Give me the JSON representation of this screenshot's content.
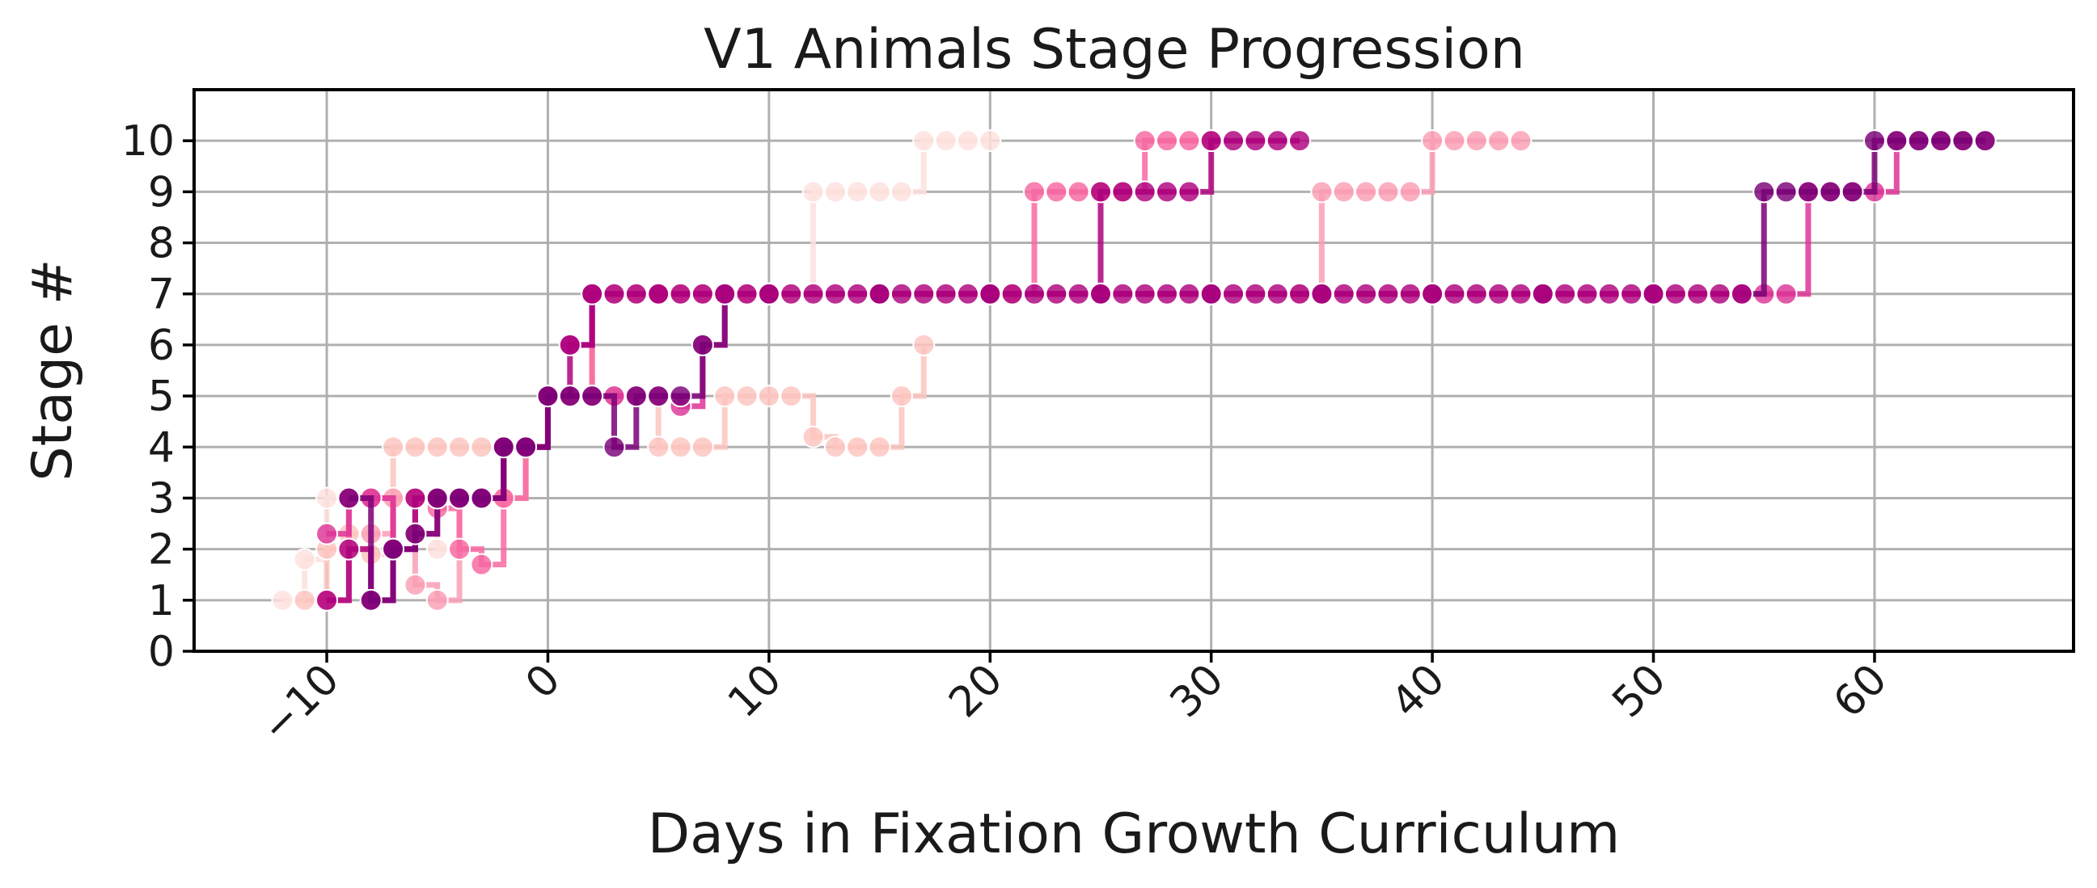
{
  "chart_data": {
    "type": "line",
    "title": "V1 Animals Stage Progression",
    "xlabel": "Days in Fixation Growth Curriculum",
    "ylabel": "Stage #",
    "xlim": [
      -16,
      69
    ],
    "ylim": [
      0,
      11
    ],
    "xticks": [
      -10,
      0,
      10,
      20,
      30,
      40,
      50,
      60
    ],
    "xtick_labels": [
      "−10",
      "0",
      "10",
      "20",
      "30",
      "40",
      "50",
      "60"
    ],
    "yticks": [
      0,
      1,
      2,
      3,
      4,
      5,
      6,
      7,
      8,
      9,
      10
    ],
    "ytick_labels": [
      "0",
      "1",
      "2",
      "3",
      "4",
      "5",
      "6",
      "7",
      "8",
      "9",
      "10"
    ],
    "grid": true,
    "line_style": "steps-post",
    "series": [
      {
        "color": "#fde0dd",
        "points": [
          [
            -12,
            1
          ],
          [
            -11,
            1.8
          ],
          [
            -10,
            3
          ],
          [
            -9,
            3
          ],
          [
            -8,
            1
          ],
          [
            -7,
            3
          ],
          [
            -6,
            3
          ],
          [
            -5,
            2
          ],
          [
            -4,
            3
          ],
          [
            -3,
            3
          ],
          [
            -2,
            4
          ],
          [
            -1,
            4
          ],
          [
            0,
            5
          ],
          [
            1,
            5
          ],
          [
            2,
            7
          ],
          [
            3,
            7
          ],
          [
            4,
            7
          ],
          [
            5,
            7
          ],
          [
            6,
            7
          ],
          [
            7,
            7
          ],
          [
            8,
            7
          ],
          [
            9,
            7
          ],
          [
            10,
            7
          ],
          [
            11,
            7
          ],
          [
            12,
            9
          ],
          [
            13,
            9
          ],
          [
            14,
            9
          ],
          [
            15,
            9
          ],
          [
            16,
            9
          ],
          [
            17,
            10
          ],
          [
            18,
            10
          ],
          [
            19,
            10
          ],
          [
            20,
            10
          ]
        ]
      },
      {
        "color": "#fcc5c0",
        "points": [
          [
            -11,
            1
          ],
          [
            -10,
            2
          ],
          [
            -9,
            2.3
          ],
          [
            -8,
            1.9
          ],
          [
            -7,
            4
          ],
          [
            -6,
            4
          ],
          [
            -5,
            4
          ],
          [
            -4,
            4
          ],
          [
            -3,
            4
          ],
          [
            -2,
            4
          ],
          [
            -1,
            4
          ],
          [
            0,
            5
          ],
          [
            1,
            5
          ],
          [
            2,
            5
          ],
          [
            3,
            5
          ],
          [
            4,
            5
          ],
          [
            5,
            4
          ],
          [
            6,
            4
          ],
          [
            7,
            4
          ],
          [
            8,
            5
          ],
          [
            9,
            5
          ],
          [
            10,
            5
          ],
          [
            11,
            5
          ],
          [
            12,
            4.2
          ],
          [
            13,
            4
          ],
          [
            14,
            4
          ],
          [
            15,
            4
          ],
          [
            16,
            5
          ],
          [
            17,
            6
          ]
        ]
      },
      {
        "color": "#fa9fb5",
        "points": [
          [
            -9,
            2
          ],
          [
            -8,
            2.3
          ],
          [
            -7,
            3
          ],
          [
            -6,
            1.3
          ],
          [
            -5,
            1
          ],
          [
            -4,
            3
          ],
          [
            -3,
            3
          ],
          [
            -2,
            3
          ],
          [
            -1,
            4
          ],
          [
            0,
            5
          ],
          [
            1,
            5
          ],
          [
            2,
            7
          ],
          [
            3,
            7
          ],
          [
            4,
            7
          ],
          [
            5,
            7
          ],
          [
            6,
            7
          ],
          [
            7,
            7
          ],
          [
            8,
            7
          ],
          [
            9,
            7
          ],
          [
            10,
            7
          ],
          [
            15,
            7
          ],
          [
            20,
            7
          ],
          [
            25,
            7
          ],
          [
            30,
            7
          ],
          [
            34,
            7
          ],
          [
            35,
            9
          ],
          [
            36,
            9
          ],
          [
            37,
            9
          ],
          [
            38,
            9
          ],
          [
            39,
            9
          ],
          [
            40,
            10
          ],
          [
            41,
            10
          ],
          [
            42,
            10
          ],
          [
            43,
            10
          ],
          [
            44,
            10
          ]
        ]
      },
      {
        "color": "#f768a1",
        "points": [
          [
            -10,
            1
          ],
          [
            -9,
            3
          ],
          [
            -8,
            3
          ],
          [
            -7,
            2
          ],
          [
            -6,
            3
          ],
          [
            -5,
            2.8
          ],
          [
            -4,
            2
          ],
          [
            -3,
            1.7
          ],
          [
            -2,
            3
          ],
          [
            -1,
            4
          ],
          [
            0,
            5
          ],
          [
            1,
            5
          ],
          [
            2,
            7
          ],
          [
            5,
            7
          ],
          [
            10,
            7
          ],
          [
            15,
            7
          ],
          [
            20,
            7
          ],
          [
            21,
            7
          ],
          [
            22,
            9
          ],
          [
            23,
            9
          ],
          [
            24,
            9
          ],
          [
            25,
            9
          ],
          [
            26,
            9
          ],
          [
            27,
            10
          ],
          [
            28,
            10
          ],
          [
            29,
            10
          ],
          [
            30,
            10
          ]
        ]
      },
      {
        "color": "#dd3497",
        "points": [
          [
            -10,
            2.3
          ],
          [
            -9,
            3
          ],
          [
            -8,
            3
          ],
          [
            -7,
            2
          ],
          [
            -6,
            2.3
          ],
          [
            -5,
            3
          ],
          [
            -4,
            3
          ],
          [
            -3,
            3
          ],
          [
            -2,
            4
          ],
          [
            -1,
            4
          ],
          [
            0,
            5
          ],
          [
            1,
            5
          ],
          [
            2,
            5
          ],
          [
            3,
            5
          ],
          [
            4,
            5
          ],
          [
            5,
            5
          ],
          [
            6,
            4.8
          ],
          [
            7,
            6
          ],
          [
            8,
            7
          ],
          [
            10,
            7
          ],
          [
            15,
            7
          ],
          [
            20,
            7
          ],
          [
            25,
            7
          ],
          [
            30,
            7
          ],
          [
            35,
            7
          ],
          [
            40,
            7
          ],
          [
            45,
            7
          ],
          [
            50,
            7
          ],
          [
            55,
            7
          ],
          [
            56,
            7
          ],
          [
            57,
            9
          ],
          [
            58,
            9
          ],
          [
            59,
            9
          ],
          [
            60,
            9
          ],
          [
            61,
            10
          ],
          [
            62,
            10
          ],
          [
            63,
            10
          ],
          [
            64,
            10
          ],
          [
            65,
            10
          ]
        ]
      },
      {
        "color": "#ae017e",
        "points": [
          [
            -10,
            1
          ],
          [
            -9,
            2
          ],
          [
            -8,
            1
          ],
          [
            -7,
            2
          ],
          [
            -6,
            3
          ],
          [
            -5,
            3
          ],
          [
            -4,
            3
          ],
          [
            -3,
            3
          ],
          [
            -2,
            4
          ],
          [
            -1,
            4
          ],
          [
            0,
            5
          ],
          [
            1,
            6
          ],
          [
            2,
            7
          ],
          [
            5,
            7
          ],
          [
            10,
            7
          ],
          [
            15,
            7
          ],
          [
            20,
            7
          ],
          [
            25,
            9
          ],
          [
            26,
            9
          ],
          [
            27,
            9
          ],
          [
            28,
            9
          ],
          [
            29,
            9
          ],
          [
            30,
            10
          ],
          [
            31,
            10
          ],
          [
            32,
            10
          ],
          [
            33,
            10
          ],
          [
            34,
            10
          ]
        ]
      },
      {
        "color": "#7a0177",
        "points": [
          [
            -9,
            3
          ],
          [
            -8,
            1
          ],
          [
            -7,
            2
          ],
          [
            -6,
            2.3
          ],
          [
            -5,
            3
          ],
          [
            -4,
            3
          ],
          [
            -3,
            3
          ],
          [
            -2,
            4
          ],
          [
            -1,
            4
          ],
          [
            0,
            5
          ],
          [
            1,
            5
          ],
          [
            2,
            5
          ],
          [
            3,
            4
          ],
          [
            4,
            5
          ],
          [
            5,
            5
          ],
          [
            6,
            5
          ],
          [
            7,
            6
          ],
          [
            8,
            7
          ],
          [
            10,
            7
          ],
          [
            15,
            7
          ],
          [
            20,
            7
          ],
          [
            25,
            7
          ],
          [
            30,
            7
          ],
          [
            35,
            7
          ],
          [
            40,
            7
          ],
          [
            45,
            7
          ],
          [
            50,
            7
          ],
          [
            54,
            7
          ],
          [
            55,
            9
          ],
          [
            56,
            9
          ],
          [
            57,
            9
          ],
          [
            58,
            9
          ],
          [
            59,
            9
          ],
          [
            60,
            10
          ],
          [
            61,
            10
          ],
          [
            62,
            10
          ],
          [
            63,
            10
          ],
          [
            64,
            10
          ],
          [
            65,
            10
          ]
        ]
      },
      {
        "color": "#ae017e",
        "points": [
          [
            1,
            6
          ],
          [
            2,
            7
          ],
          [
            3,
            7
          ],
          [
            4,
            7
          ],
          [
            5,
            7
          ],
          [
            6,
            7
          ],
          [
            7,
            7
          ],
          [
            8,
            7
          ],
          [
            9,
            7
          ],
          [
            10,
            7
          ],
          [
            11,
            7
          ],
          [
            12,
            7
          ],
          [
            13,
            7
          ],
          [
            14,
            7
          ],
          [
            15,
            7
          ],
          [
            16,
            7
          ],
          [
            17,
            7
          ],
          [
            18,
            7
          ],
          [
            19,
            7
          ],
          [
            20,
            7
          ],
          [
            21,
            7
          ],
          [
            22,
            7
          ],
          [
            23,
            7
          ],
          [
            24,
            7
          ],
          [
            25,
            7
          ],
          [
            26,
            7
          ],
          [
            27,
            7
          ],
          [
            28,
            7
          ],
          [
            29,
            7
          ],
          [
            30,
            7
          ],
          [
            31,
            7
          ],
          [
            32,
            7
          ],
          [
            33,
            7
          ],
          [
            34,
            7
          ],
          [
            35,
            7
          ],
          [
            36,
            7
          ],
          [
            37,
            7
          ],
          [
            38,
            7
          ],
          [
            39,
            7
          ],
          [
            40,
            7
          ],
          [
            41,
            7
          ],
          [
            42,
            7
          ],
          [
            43,
            7
          ],
          [
            44,
            7
          ],
          [
            45,
            7
          ],
          [
            46,
            7
          ],
          [
            47,
            7
          ],
          [
            48,
            7
          ],
          [
            49,
            7
          ],
          [
            50,
            7
          ],
          [
            51,
            7
          ],
          [
            52,
            7
          ],
          [
            53,
            7
          ],
          [
            54,
            7
          ]
        ]
      }
    ]
  }
}
